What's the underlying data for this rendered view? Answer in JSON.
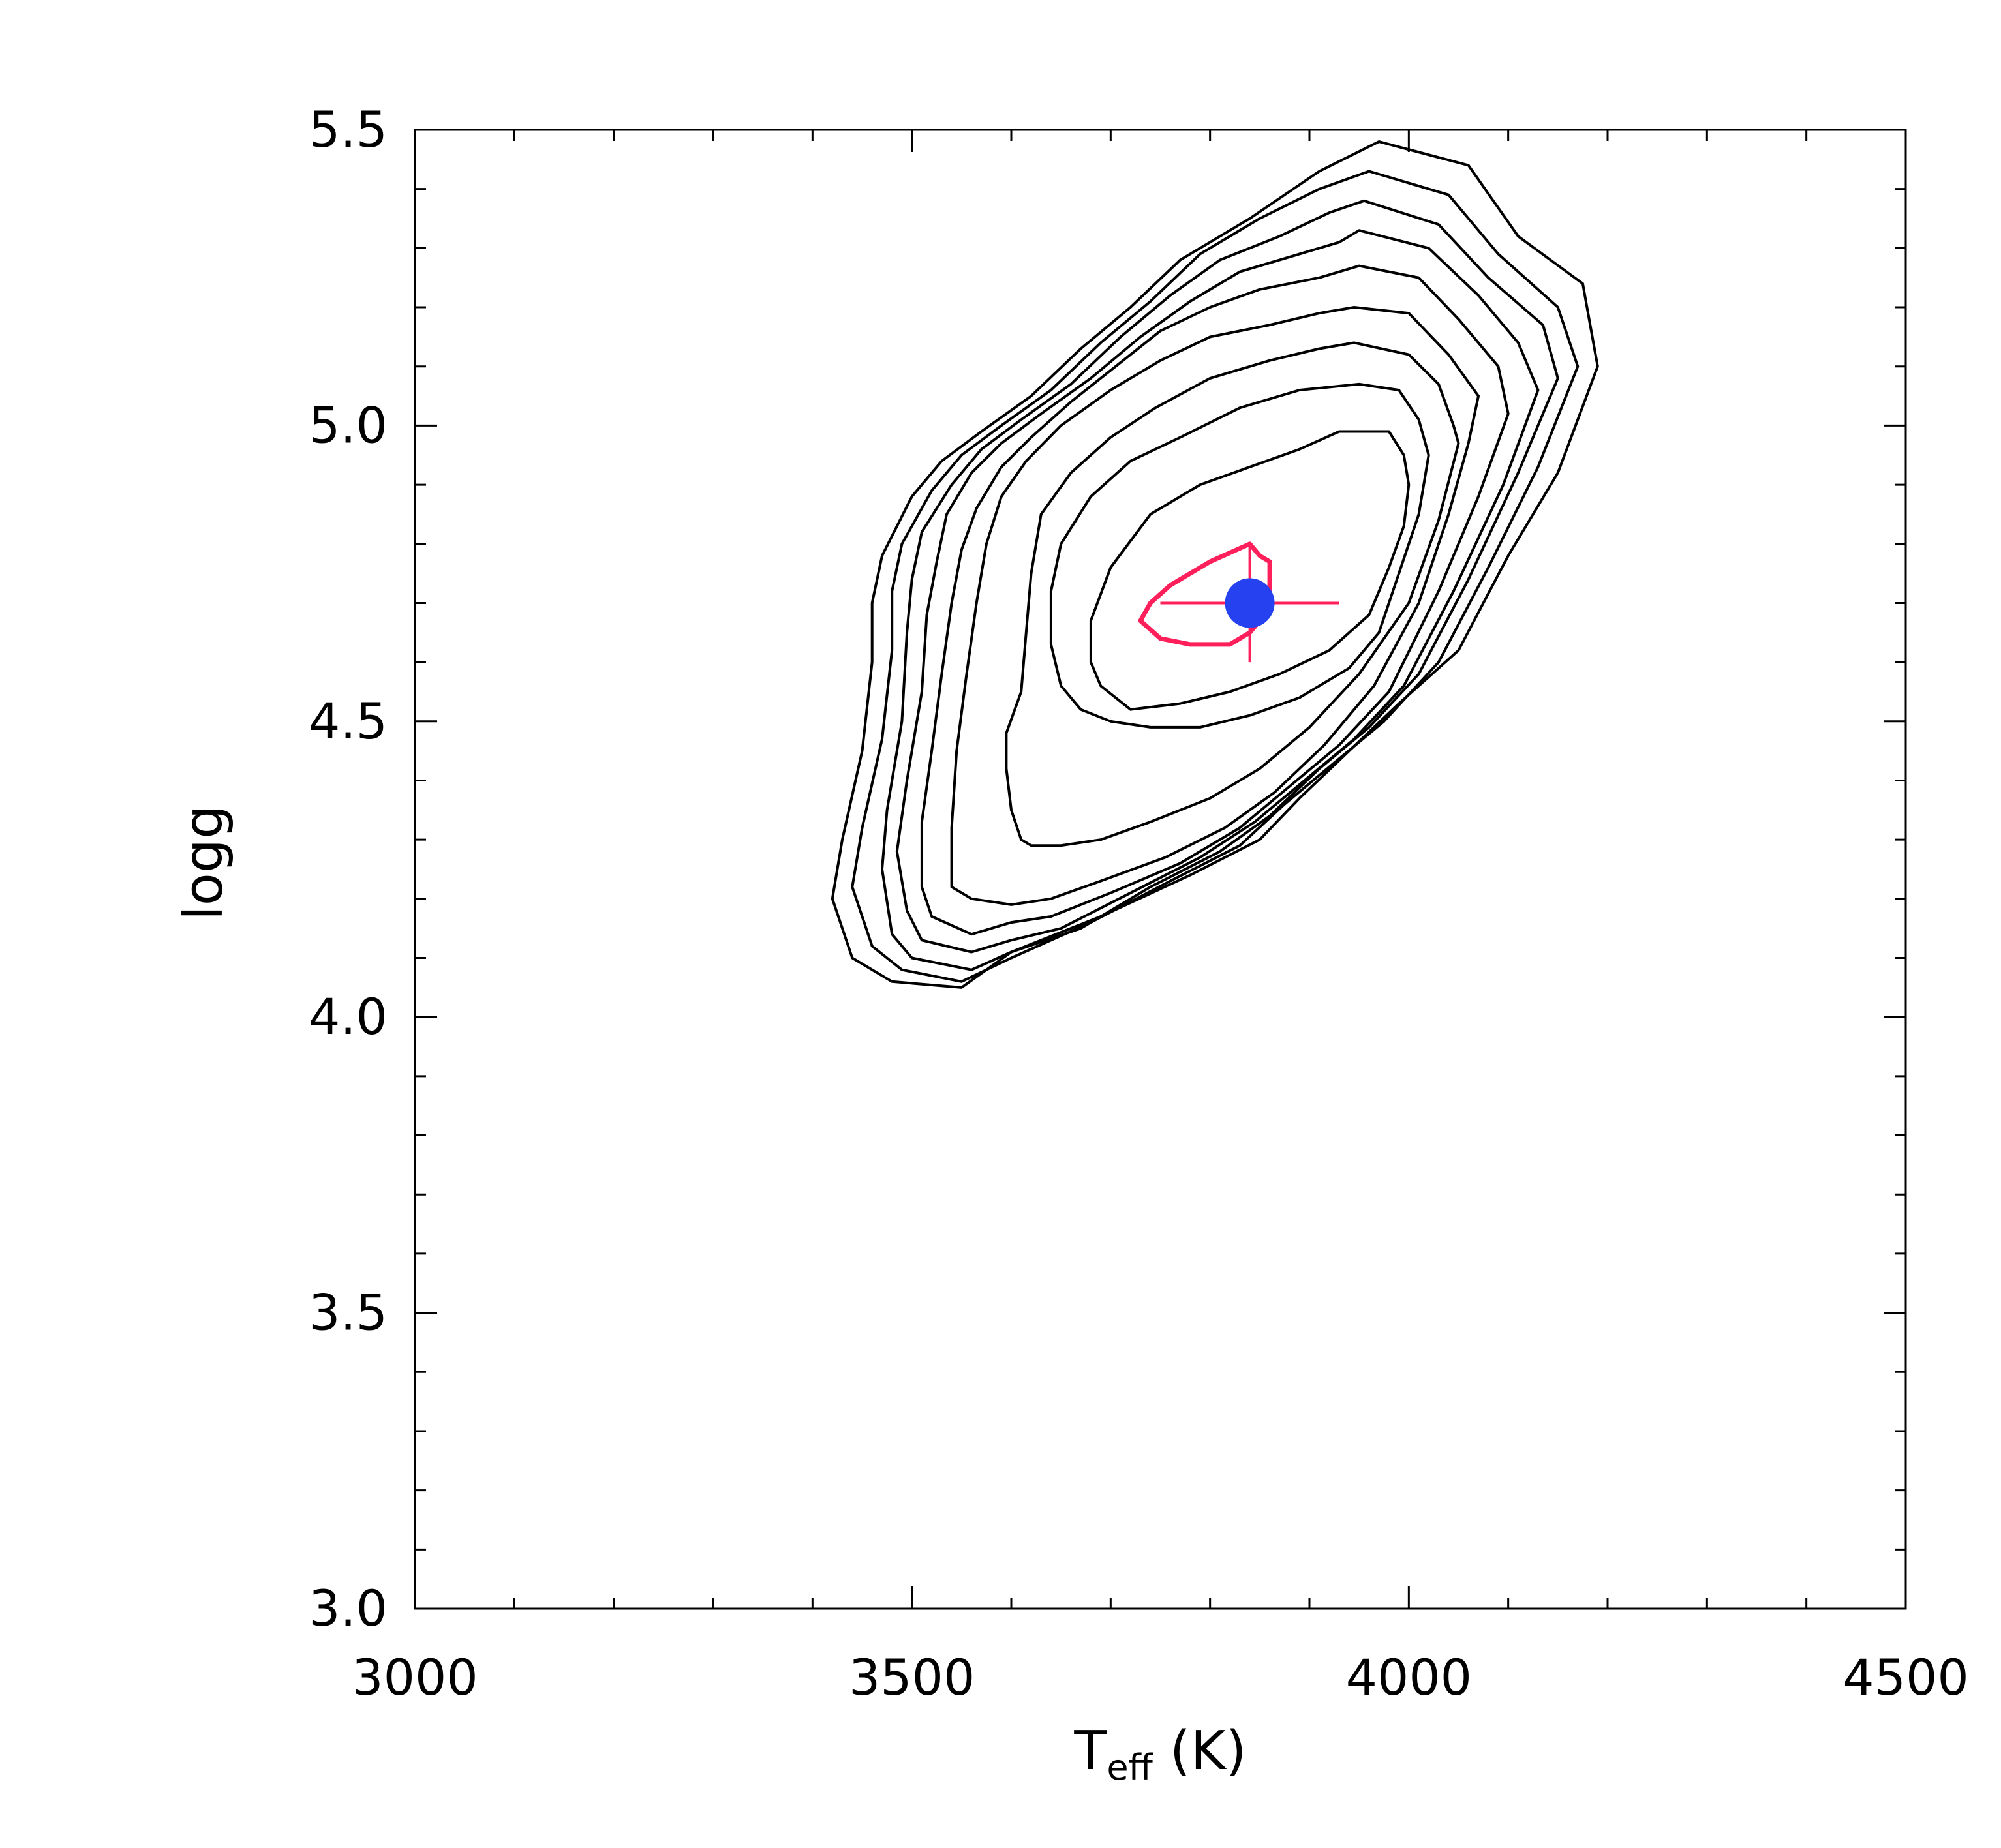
{
  "chart_data": {
    "type": "contour",
    "xlabel": {
      "main": "T",
      "sub": "eff",
      "rest": " (K)"
    },
    "ylabel": "logg",
    "xlim": [
      3000,
      4500
    ],
    "ylim": [
      3.0,
      5.5
    ],
    "xticks": [
      3000,
      3500,
      4000,
      4500
    ],
    "yticks": [
      3.0,
      3.5,
      4.0,
      4.5,
      5.0,
      5.5
    ],
    "xtick_labels": [
      "3000",
      "3500",
      "4000",
      "4500"
    ],
    "ytick_labels": [
      "3.0",
      "3.5",
      "4.0",
      "4.5",
      "5.0",
      "5.5"
    ],
    "x_minor_step": 100,
    "y_minor_step": 0.1,
    "grid": false,
    "contour_color": "#000000",
    "best_contour_color": "#ff1f5a",
    "point_color": "#2541f0",
    "contours": [
      [
        [
          3970,
          5.48
        ],
        [
          4060,
          5.44
        ],
        [
          4110,
          5.32
        ],
        [
          4175,
          5.24
        ],
        [
          4190,
          5.1
        ],
        [
          4150,
          4.92
        ],
        [
          4100,
          4.78
        ],
        [
          4050,
          4.62
        ],
        [
          3990,
          4.53
        ],
        [
          3940,
          4.45
        ],
        [
          3890,
          4.37
        ],
        [
          3850,
          4.3
        ],
        [
          3780,
          4.24
        ],
        [
          3690,
          4.17
        ],
        [
          3600,
          4.11
        ],
        [
          3550,
          4.05
        ],
        [
          3480,
          4.06
        ],
        [
          3440,
          4.1
        ],
        [
          3420,
          4.2
        ],
        [
          3430,
          4.3
        ],
        [
          3450,
          4.45
        ],
        [
          3460,
          4.6
        ],
        [
          3460,
          4.7
        ],
        [
          3470,
          4.78
        ],
        [
          3500,
          4.88
        ],
        [
          3530,
          4.94
        ],
        [
          3570,
          4.99
        ],
        [
          3620,
          5.05
        ],
        [
          3670,
          5.13
        ],
        [
          3720,
          5.2
        ],
        [
          3770,
          5.28
        ],
        [
          3840,
          5.35
        ],
        [
          3910,
          5.43
        ],
        [
          3970,
          5.48
        ]
      ],
      [
        [
          3960,
          5.43
        ],
        [
          4040,
          5.39
        ],
        [
          4090,
          5.29
        ],
        [
          4150,
          5.2
        ],
        [
          4170,
          5.1
        ],
        [
          4130,
          4.93
        ],
        [
          4080,
          4.76
        ],
        [
          4030,
          4.6
        ],
        [
          3975,
          4.5
        ],
        [
          3925,
          4.43
        ],
        [
          3875,
          4.36
        ],
        [
          3830,
          4.29
        ],
        [
          3760,
          4.23
        ],
        [
          3680,
          4.16
        ],
        [
          3600,
          4.1
        ],
        [
          3550,
          4.06
        ],
        [
          3490,
          4.08
        ],
        [
          3460,
          4.12
        ],
        [
          3440,
          4.22
        ],
        [
          3450,
          4.32
        ],
        [
          3470,
          4.47
        ],
        [
          3480,
          4.62
        ],
        [
          3480,
          4.72
        ],
        [
          3490,
          4.8
        ],
        [
          3520,
          4.89
        ],
        [
          3550,
          4.95
        ],
        [
          3590,
          5.0
        ],
        [
          3640,
          5.06
        ],
        [
          3690,
          5.14
        ],
        [
          3740,
          5.21
        ],
        [
          3790,
          5.29
        ],
        [
          3850,
          5.35
        ],
        [
          3910,
          5.4
        ],
        [
          3960,
          5.43
        ]
      ],
      [
        [
          3955,
          5.38
        ],
        [
          4030,
          5.34
        ],
        [
          4080,
          5.25
        ],
        [
          4135,
          5.17
        ],
        [
          4150,
          5.08
        ],
        [
          4110,
          4.92
        ],
        [
          4060,
          4.74
        ],
        [
          4010,
          4.58
        ],
        [
          3960,
          4.49
        ],
        [
          3910,
          4.42
        ],
        [
          3860,
          4.34
        ],
        [
          3810,
          4.28
        ],
        [
          3740,
          4.22
        ],
        [
          3670,
          4.15
        ],
        [
          3600,
          4.11
        ],
        [
          3560,
          4.08
        ],
        [
          3500,
          4.1
        ],
        [
          3480,
          4.14
        ],
        [
          3470,
          4.25
        ],
        [
          3475,
          4.35
        ],
        [
          3490,
          4.5
        ],
        [
          3495,
          4.65
        ],
        [
          3500,
          4.74
        ],
        [
          3510,
          4.82
        ],
        [
          3540,
          4.9
        ],
        [
          3570,
          4.96
        ],
        [
          3610,
          5.01
        ],
        [
          3660,
          5.07
        ],
        [
          3710,
          5.15
        ],
        [
          3760,
          5.22
        ],
        [
          3810,
          5.28
        ],
        [
          3870,
          5.32
        ],
        [
          3920,
          5.36
        ],
        [
          3955,
          5.38
        ]
      ],
      [
        [
          3950,
          5.33
        ],
        [
          4020,
          5.3
        ],
        [
          4070,
          5.22
        ],
        [
          4110,
          5.14
        ],
        [
          4130,
          5.06
        ],
        [
          4095,
          4.9
        ],
        [
          4045,
          4.72
        ],
        [
          3995,
          4.56
        ],
        [
          3945,
          4.47
        ],
        [
          3895,
          4.4
        ],
        [
          3845,
          4.33
        ],
        [
          3790,
          4.27
        ],
        [
          3720,
          4.21
        ],
        [
          3650,
          4.15
        ],
        [
          3600,
          4.13
        ],
        [
          3560,
          4.11
        ],
        [
          3510,
          4.13
        ],
        [
          3495,
          4.18
        ],
        [
          3485,
          4.28
        ],
        [
          3495,
          4.4
        ],
        [
          3510,
          4.55
        ],
        [
          3515,
          4.68
        ],
        [
          3525,
          4.77
        ],
        [
          3535,
          4.85
        ],
        [
          3560,
          4.92
        ],
        [
          3590,
          4.97
        ],
        [
          3630,
          5.02
        ],
        [
          3680,
          5.08
        ],
        [
          3730,
          5.15
        ],
        [
          3780,
          5.21
        ],
        [
          3830,
          5.26
        ],
        [
          3890,
          5.29
        ],
        [
          3930,
          5.31
        ],
        [
          3950,
          5.33
        ]
      ],
      [
        [
          3950,
          5.27
        ],
        [
          4010,
          5.25
        ],
        [
          4050,
          5.18
        ],
        [
          4090,
          5.1
        ],
        [
          4100,
          5.02
        ],
        [
          4070,
          4.88
        ],
        [
          4030,
          4.72
        ],
        [
          3980,
          4.55
        ],
        [
          3930,
          4.46
        ],
        [
          3880,
          4.39
        ],
        [
          3830,
          4.32
        ],
        [
          3770,
          4.26
        ],
        [
          3700,
          4.21
        ],
        [
          3640,
          4.17
        ],
        [
          3600,
          4.16
        ],
        [
          3560,
          4.14
        ],
        [
          3520,
          4.17
        ],
        [
          3510,
          4.22
        ],
        [
          3510,
          4.33
        ],
        [
          3520,
          4.45
        ],
        [
          3530,
          4.58
        ],
        [
          3540,
          4.7
        ],
        [
          3550,
          4.79
        ],
        [
          3565,
          4.86
        ],
        [
          3590,
          4.93
        ],
        [
          3620,
          4.98
        ],
        [
          3660,
          5.04
        ],
        [
          3705,
          5.1
        ],
        [
          3750,
          5.16
        ],
        [
          3800,
          5.2
        ],
        [
          3850,
          5.23
        ],
        [
          3910,
          5.25
        ],
        [
          3950,
          5.27
        ]
      ],
      [
        [
          3945,
          5.2
        ],
        [
          4000,
          5.19
        ],
        [
          4040,
          5.12
        ],
        [
          4070,
          5.05
        ],
        [
          4060,
          4.97
        ],
        [
          4040,
          4.85
        ],
        [
          4010,
          4.7
        ],
        [
          3965,
          4.56
        ],
        [
          3915,
          4.46
        ],
        [
          3865,
          4.38
        ],
        [
          3815,
          4.32
        ],
        [
          3755,
          4.27
        ],
        [
          3690,
          4.23
        ],
        [
          3640,
          4.2
        ],
        [
          3600,
          4.19
        ],
        [
          3560,
          4.2
        ],
        [
          3540,
          4.22
        ],
        [
          3540,
          4.32
        ],
        [
          3545,
          4.45
        ],
        [
          3555,
          4.58
        ],
        [
          3565,
          4.7
        ],
        [
          3575,
          4.8
        ],
        [
          3590,
          4.88
        ],
        [
          3615,
          4.94
        ],
        [
          3650,
          5.0
        ],
        [
          3700,
          5.06
        ],
        [
          3750,
          5.11
        ],
        [
          3800,
          5.15
        ],
        [
          3860,
          5.17
        ],
        [
          3910,
          5.19
        ],
        [
          3945,
          5.2
        ]
      ],
      [
        [
          3945,
          5.14
        ],
        [
          4000,
          5.12
        ],
        [
          4030,
          5.07
        ],
        [
          4045,
          5.0
        ],
        [
          4050,
          4.97
        ],
        [
          4030,
          4.84
        ],
        [
          4000,
          4.7
        ],
        [
          3950,
          4.58
        ],
        [
          3900,
          4.49
        ],
        [
          3850,
          4.42
        ],
        [
          3800,
          4.37
        ],
        [
          3740,
          4.33
        ],
        [
          3690,
          4.3
        ],
        [
          3650,
          4.29
        ],
        [
          3620,
          4.29
        ],
        [
          3610,
          4.3
        ],
        [
          3600,
          4.35
        ],
        [
          3595,
          4.42
        ],
        [
          3595,
          4.48
        ],
        [
          3610,
          4.55
        ],
        [
          3615,
          4.65
        ],
        [
          3620,
          4.75
        ],
        [
          3630,
          4.85
        ],
        [
          3660,
          4.92
        ],
        [
          3700,
          4.98
        ],
        [
          3745,
          5.03
        ],
        [
          3800,
          5.08
        ],
        [
          3860,
          5.11
        ],
        [
          3910,
          5.13
        ],
        [
          3945,
          5.14
        ]
      ],
      [
        [
          3950,
          5.07
        ],
        [
          3990,
          5.06
        ],
        [
          4010,
          5.01
        ],
        [
          4020,
          4.95
        ],
        [
          4010,
          4.85
        ],
        [
          3990,
          4.75
        ],
        [
          3970,
          4.65
        ],
        [
          3940,
          4.59
        ],
        [
          3890,
          4.54
        ],
        [
          3840,
          4.51
        ],
        [
          3790,
          4.49
        ],
        [
          3740,
          4.49
        ],
        [
          3700,
          4.5
        ],
        [
          3670,
          4.52
        ],
        [
          3650,
          4.56
        ],
        [
          3640,
          4.63
        ],
        [
          3640,
          4.72
        ],
        [
          3650,
          4.8
        ],
        [
          3680,
          4.88
        ],
        [
          3720,
          4.94
        ],
        [
          3770,
          4.98
        ],
        [
          3830,
          5.03
        ],
        [
          3890,
          5.06
        ],
        [
          3950,
          5.07
        ]
      ],
      [
        [
          3930,
          4.99
        ],
        [
          3980,
          4.99
        ],
        [
          3995,
          4.95
        ],
        [
          4000,
          4.9
        ],
        [
          3995,
          4.83
        ],
        [
          3980,
          4.76
        ],
        [
          3960,
          4.68
        ],
        [
          3920,
          4.62
        ],
        [
          3870,
          4.58
        ],
        [
          3820,
          4.55
        ],
        [
          3770,
          4.53
        ],
        [
          3720,
          4.52
        ],
        [
          3690,
          4.56
        ],
        [
          3680,
          4.6
        ],
        [
          3680,
          4.67
        ],
        [
          3700,
          4.76
        ],
        [
          3740,
          4.85
        ],
        [
          3790,
          4.9
        ],
        [
          3840,
          4.93
        ],
        [
          3890,
          4.96
        ],
        [
          3930,
          4.99
        ]
      ]
    ],
    "best_contour": [
      [
        3800,
        4.77
      ],
      [
        3840,
        4.8
      ],
      [
        3850,
        4.78
      ],
      [
        3860,
        4.77
      ],
      [
        3860,
        4.72
      ],
      [
        3860,
        4.69
      ],
      [
        3840,
        4.65
      ],
      [
        3820,
        4.63
      ],
      [
        3780,
        4.63
      ],
      [
        3750,
        4.64
      ],
      [
        3730,
        4.67
      ],
      [
        3740,
        4.7
      ],
      [
        3760,
        4.73
      ],
      [
        3780,
        4.75
      ],
      [
        3800,
        4.77
      ]
    ],
    "best_fit": {
      "x": 3840,
      "y": 4.7,
      "x_err_minus": 90,
      "x_err_plus": 90,
      "y_err_minus": 0.1,
      "y_err_plus": 0.1
    }
  }
}
